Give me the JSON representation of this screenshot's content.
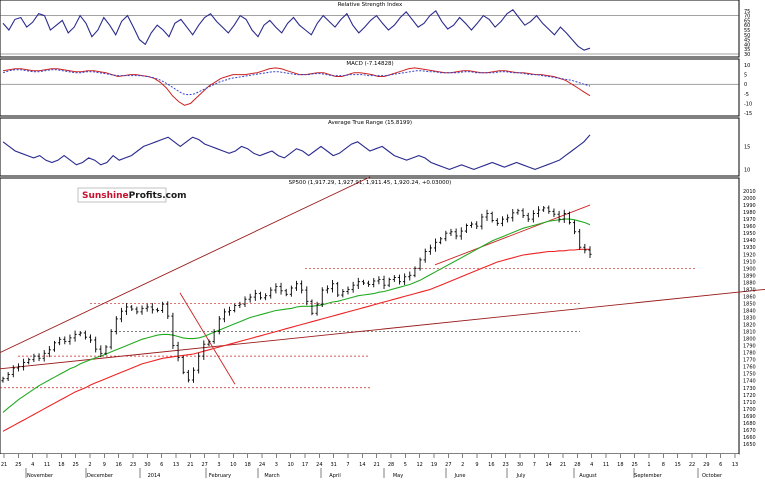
{
  "chart_data": [
    {
      "type": "line",
      "title": "Relative Strength Index",
      "ylim": [
        30,
        80
      ],
      "y_ticks": [
        "75",
        "70",
        "65",
        "60",
        "55",
        "50",
        "45",
        "40",
        "35",
        "30"
      ],
      "series": [
        {
          "color": "#2b2b8f",
          "values": [
            62,
            55,
            66,
            68,
            58,
            63,
            72,
            70,
            55,
            60,
            65,
            52,
            58,
            70,
            62,
            48,
            55,
            68,
            60,
            50,
            64,
            70,
            58,
            45,
            40,
            52,
            60,
            55,
            48,
            62,
            66,
            58,
            50,
            60,
            68,
            72,
            64,
            58,
            52,
            60,
            70,
            66,
            55,
            48,
            60,
            65,
            58,
            52,
            62,
            68,
            60,
            55,
            50,
            62,
            70,
            64,
            58,
            66,
            72,
            60,
            52,
            58,
            65,
            70,
            62,
            55,
            60,
            68,
            74,
            66,
            58,
            62,
            70,
            75,
            64,
            56,
            60,
            68,
            62,
            55,
            62,
            70,
            66,
            58,
            64,
            72,
            76,
            68,
            60,
            64,
            70,
            62,
            56,
            50,
            58,
            52,
            45,
            38,
            34,
            36
          ]
        }
      ]
    },
    {
      "type": "line",
      "title": "MACD (-7.14828)",
      "ylim": [
        -15,
        10
      ],
      "y_ticks": [
        "10",
        "5",
        "0",
        "-5",
        "-10",
        "-15"
      ],
      "series": [
        {
          "color": "#cc2222",
          "values": [
            7,
            7.5,
            8,
            8,
            7.5,
            7,
            7,
            7.5,
            8,
            8,
            7.5,
            7,
            6.5,
            6.5,
            7,
            7,
            6.5,
            6,
            5,
            4,
            4.5,
            5,
            5,
            4.5,
            4,
            3,
            1,
            -2,
            -6,
            -9,
            -11,
            -10,
            -7,
            -4,
            -1,
            1,
            3,
            4,
            5,
            5,
            5,
            5.5,
            6,
            7,
            8,
            8.5,
            8,
            7,
            6,
            5,
            5,
            5.5,
            6,
            6,
            5,
            4,
            4,
            5,
            6,
            6,
            5.5,
            5,
            4,
            4,
            5,
            6,
            7,
            8,
            8.5,
            8,
            7.5,
            7,
            6.5,
            6,
            6,
            6.5,
            7,
            7,
            6.5,
            6,
            6,
            6.5,
            7,
            7,
            6.5,
            6,
            6,
            5.5,
            5,
            5,
            4.5,
            4,
            3,
            2,
            0,
            -2,
            -4,
            -6
          ]
        },
        {
          "color": "#3344cc",
          "values": [
            6,
            7,
            7.5,
            7.5,
            7,
            6.5,
            6.5,
            7,
            7.5,
            7.5,
            7,
            6.5,
            6,
            6,
            6.5,
            6.5,
            6,
            5.5,
            5,
            4.5,
            4.5,
            4.5,
            4.5,
            4.5,
            4,
            3.5,
            2.5,
            1,
            -1,
            -3,
            -5,
            -5.5,
            -5,
            -3.5,
            -2,
            -0.5,
            1,
            2,
            3,
            3.5,
            4,
            4.5,
            5,
            5.5,
            6,
            6.5,
            6.5,
            6,
            5.5,
            5,
            5,
            5,
            5.5,
            5.5,
            5,
            4.5,
            4.5,
            4.5,
            5,
            5,
            5,
            4.5,
            4.5,
            4.5,
            4.5,
            5,
            5.5,
            6,
            6.5,
            7,
            7,
            6.5,
            6.5,
            6,
            6,
            6,
            6,
            6.5,
            6.5,
            6,
            6,
            6,
            6,
            6.5,
            6.5,
            6,
            6,
            5.5,
            5,
            5,
            4.5,
            4,
            3.5,
            3,
            2.5,
            2,
            1,
            0,
            -1
          ]
        }
      ]
    },
    {
      "type": "line",
      "title": "Average True Range (15.8199)",
      "y_ticks": [
        "15",
        "10"
      ],
      "series": [
        {
          "color": "#2b2b8f",
          "values": [
            16,
            15,
            14,
            13.5,
            13,
            12.5,
            13,
            12,
            11.5,
            12,
            13,
            12,
            11,
            11.5,
            12.5,
            12,
            11,
            11.5,
            13,
            12,
            12.5,
            13,
            14,
            15,
            15.5,
            16,
            16.5,
            17,
            16,
            15,
            16,
            17,
            16.5,
            15.5,
            15,
            14.5,
            14,
            13.5,
            14,
            15,
            14.5,
            13.5,
            13,
            13.5,
            14,
            13,
            12.5,
            13.5,
            14.5,
            14,
            13,
            14,
            15,
            14,
            13,
            13.5,
            14.5,
            15.5,
            16,
            15,
            14,
            14.5,
            15,
            14,
            13,
            12.5,
            12,
            12.5,
            13,
            12.5,
            11.5,
            11,
            10.5,
            10,
            10.5,
            11,
            10.5,
            10,
            10.5,
            11,
            11.5,
            11,
            10.5,
            11,
            11.5,
            11,
            10.5,
            10,
            10.5,
            11,
            11.5,
            12,
            13,
            14,
            15,
            16,
            17.5
          ]
        }
      ]
    },
    {
      "type": "bar",
      "title": "SP500 (1,917.29, 1,927.91, 1,911.45, 1,920.24, +0.03000)",
      "ylim": [
        1640,
        2020
      ],
      "y_ticks": [
        "2010",
        "2000",
        "1990",
        "1980",
        "1970",
        "1960",
        "1950",
        "1940",
        "1930",
        "1920",
        "1910",
        "1900",
        "1890",
        "1880",
        "1870",
        "1860",
        "1850",
        "1840",
        "1830",
        "1820",
        "1810",
        "1800",
        "1790",
        "1780",
        "1770",
        "1760",
        "1750",
        "1740",
        "1730",
        "1720",
        "1710",
        "1700",
        "1690",
        "1680",
        "1670",
        "1660",
        "1650"
      ],
      "x_ticks": [
        "21",
        "25",
        "4",
        "11",
        "18",
        "25",
        "2",
        "9",
        "16",
        "23",
        "30",
        "6",
        "13",
        "21",
        "27",
        "3",
        "10",
        "18",
        "24",
        "3",
        "10",
        "17",
        "24",
        "31",
        "7",
        "14",
        "21",
        "28",
        "5",
        "12",
        "19",
        "27",
        "2",
        "9",
        "16",
        "23",
        "30",
        "7",
        "14",
        "21",
        "28",
        "4",
        "11",
        "18",
        "25",
        "1",
        "8",
        "15",
        "22",
        "29",
        "6",
        "13"
      ],
      "month_labels": [
        "November",
        "December",
        "2014",
        "February",
        "March",
        "April",
        "May",
        "June",
        "July",
        "August",
        "September",
        "October"
      ],
      "close": [
        1743,
        1749,
        1758,
        1760,
        1766,
        1770,
        1775,
        1772,
        1779,
        1784,
        1794,
        1799,
        1796,
        1801,
        1806,
        1808,
        1802,
        1798,
        1785,
        1779,
        1788,
        1810,
        1828,
        1839,
        1845,
        1842,
        1838,
        1843,
        1845,
        1841,
        1840,
        1849,
        1832,
        1790,
        1773,
        1752,
        1741,
        1755,
        1775,
        1792,
        1796,
        1810,
        1828,
        1838,
        1840,
        1847,
        1849,
        1856,
        1859,
        1864,
        1858,
        1861,
        1869,
        1874,
        1868,
        1863,
        1872,
        1878,
        1869,
        1853,
        1836,
        1849,
        1869,
        1871,
        1878,
        1862,
        1867,
        1870,
        1876,
        1881,
        1879,
        1877,
        1882,
        1884,
        1876,
        1884,
        1887,
        1881,
        1888,
        1890,
        1900,
        1912,
        1924,
        1929,
        1937,
        1942,
        1950,
        1952,
        1946,
        1953,
        1961,
        1963,
        1960,
        1973,
        1978,
        1968,
        1964,
        1970,
        1972,
        1979,
        1982,
        1975,
        1970,
        1978,
        1983,
        1986,
        1981,
        1977,
        1970,
        1978,
        1965,
        1952,
        1930,
        1926,
        1920
      ],
      "ma50": [
        1695,
        1701,
        1707,
        1713,
        1718,
        1723,
        1728,
        1733,
        1737,
        1741,
        1745,
        1749,
        1753,
        1757,
        1760,
        1764,
        1767,
        1770,
        1773,
        1775,
        1778,
        1781,
        1784,
        1787,
        1790,
        1793,
        1796,
        1799,
        1801,
        1803,
        1805,
        1806,
        1806,
        1805,
        1803,
        1801,
        1800,
        1800,
        1801,
        1803,
        1806,
        1809,
        1812,
        1815,
        1818,
        1821,
        1824,
        1827,
        1830,
        1832,
        1834,
        1836,
        1838,
        1840,
        1841,
        1842,
        1843,
        1845,
        1846,
        1846,
        1846,
        1847,
        1848,
        1850,
        1852,
        1853,
        1855,
        1857,
        1859,
        1861,
        1862,
        1863,
        1864,
        1866,
        1867,
        1869,
        1871,
        1873,
        1875,
        1877,
        1880,
        1883,
        1887,
        1891,
        1895,
        1899,
        1903,
        1907,
        1911,
        1915,
        1919,
        1923,
        1927,
        1931,
        1935,
        1939,
        1942,
        1945,
        1948,
        1951,
        1954,
        1957,
        1959,
        1961,
        1963,
        1965,
        1967,
        1968,
        1969,
        1970,
        1970,
        1969,
        1967,
        1965,
        1962
      ],
      "ma200": [
        1668,
        1672,
        1676,
        1680,
        1684,
        1688,
        1692,
        1696,
        1700,
        1704,
        1708,
        1712,
        1716,
        1720,
        1724,
        1727,
        1730,
        1734,
        1737,
        1740,
        1743,
        1746,
        1749,
        1752,
        1755,
        1758,
        1761,
        1764,
        1766,
        1768,
        1770,
        1772,
        1773,
        1774,
        1775,
        1776,
        1777,
        1778,
        1780,
        1782,
        1784,
        1786,
        1788,
        1790,
        1792,
        1794,
        1796,
        1798,
        1800,
        1802,
        1804,
        1806,
        1808,
        1810,
        1812,
        1814,
        1816,
        1818,
        1820,
        1822,
        1824,
        1826,
        1828,
        1830,
        1832,
        1834,
        1836,
        1838,
        1840,
        1842,
        1844,
        1846,
        1848,
        1850,
        1852,
        1854,
        1856,
        1858,
        1860,
        1862,
        1864,
        1866,
        1868,
        1870,
        1873,
        1876,
        1879,
        1882,
        1885,
        1888,
        1891,
        1894,
        1897,
        1900,
        1903,
        1906,
        1909,
        1911,
        1913,
        1915,
        1917,
        1919,
        1920,
        1921,
        1922,
        1923,
        1924,
        1924,
        1925,
        1925,
        1926,
        1926,
        1927,
        1927,
        1927
      ],
      "support_levels": [
        1900,
        1850,
        1810,
        1775,
        1730
      ],
      "ma50_color": "#22aa22",
      "ma200_color": "#ee2222",
      "trendline_color": "#9b1c1c",
      "level_color": "#cc2222"
    }
  ],
  "logo": {
    "part1": "Sunshine",
    "part2": "Profits.com"
  }
}
